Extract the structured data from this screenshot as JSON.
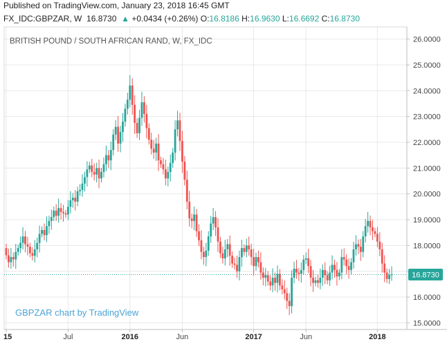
{
  "published": "Published on TradingView.com, January 23, 2018 16:45 GMT",
  "header": {
    "symbol": "FX_IDC:GBPZAR, W",
    "last": "16.8730",
    "arrow": "▲",
    "change": "+0.0434 (+0.26%)",
    "o_label": "O:",
    "o": "16.8186",
    "h_label": "H:",
    "h": "16.9630",
    "l_label": "L:",
    "l": "16.6692",
    "c_label": "C:",
    "c": "16.8730"
  },
  "colors": {
    "up": "#26a69a",
    "down": "#ef5350",
    "accent": "#26a69a",
    "grid": "#e8e8e8"
  },
  "chart_data": {
    "type": "candlestick",
    "title": "BRITISH POUND / SOUTH AFRICAN RAND, W, FX_IDC",
    "watermark": "GBPZAR chart by TradingView",
    "ylim": [
      15.0,
      26.0
    ],
    "y_ticks": [
      "15.0000",
      "16.0000",
      "17.0000",
      "18.0000",
      "19.0000",
      "20.0000",
      "21.0000",
      "22.0000",
      "23.0000",
      "24.0000",
      "25.0000",
      "26.0000"
    ],
    "x_ticks": [
      {
        "label": "15",
        "bold": true,
        "index": 0
      },
      {
        "label": "Jul",
        "bold": false,
        "index": 26
      },
      {
        "label": "2016",
        "bold": true,
        "index": 52
      },
      {
        "label": "Jun",
        "bold": false,
        "index": 74
      },
      {
        "label": "2017",
        "bold": true,
        "index": 104
      },
      {
        "label": "Jun",
        "bold": false,
        "index": 126
      },
      {
        "label": "2018",
        "bold": true,
        "index": 156
      }
    ],
    "last_price": 16.873,
    "last_price_label": "16.8730",
    "close": [
      17.62,
      17.35,
      17.55,
      17.46,
      17.75,
      17.9,
      18.1,
      18.35,
      18.05,
      17.95,
      17.7,
      17.6,
      17.85,
      18.1,
      18.45,
      18.6,
      18.4,
      18.75,
      18.95,
      19.1,
      19.35,
      19.15,
      19.45,
      19.3,
      19.25,
      19.2,
      19.5,
      19.75,
      19.85,
      19.7,
      20.1,
      20.15,
      20.4,
      20.65,
      20.95,
      21.1,
      20.85,
      20.75,
      21.0,
      20.6,
      20.85,
      21.15,
      21.5,
      21.3,
      21.7,
      22.3,
      22.6,
      21.95,
      22.4,
      22.8,
      23.3,
      23.65,
      24.2,
      23.45,
      22.75,
      22.35,
      22.95,
      23.55,
      23.1,
      22.55,
      22.1,
      21.75,
      21.6,
      21.95,
      21.3,
      21.15,
      20.95,
      20.6,
      20.85,
      21.2,
      21.6,
      22.5,
      22.85,
      22.05,
      21.25,
      20.55,
      19.7,
      19.05,
      18.95,
      19.2,
      18.55,
      18.2,
      17.75,
      17.55,
      17.8,
      18.35,
      18.85,
      19.1,
      18.7,
      18.15,
      17.7,
      17.5,
      17.85,
      18.05,
      17.6,
      17.3,
      17.25,
      17.0,
      17.55,
      17.9,
      17.75,
      18.0,
      17.85,
      17.55,
      17.2,
      17.55,
      17.35,
      16.95,
      16.75,
      16.85,
      16.6,
      16.45,
      16.75,
      16.55,
      16.9,
      16.45,
      16.3,
      16.15,
      15.85,
      15.65,
      16.75,
      17.1,
      16.95,
      16.9,
      17.05,
      17.45,
      17.5,
      17.2,
      16.75,
      16.55,
      16.65,
      16.55,
      16.75,
      17.05,
      16.85,
      16.65,
      16.95,
      17.25,
      17.05,
      16.8,
      16.95,
      17.55,
      17.45,
      17.2,
      17.05,
      17.35,
      17.85,
      18.05,
      17.95,
      17.75,
      18.35,
      18.75,
      18.95,
      18.7,
      18.55,
      18.45,
      18.15,
      17.85,
      17.3,
      16.95,
      16.7,
      16.85,
      16.87
    ]
  }
}
